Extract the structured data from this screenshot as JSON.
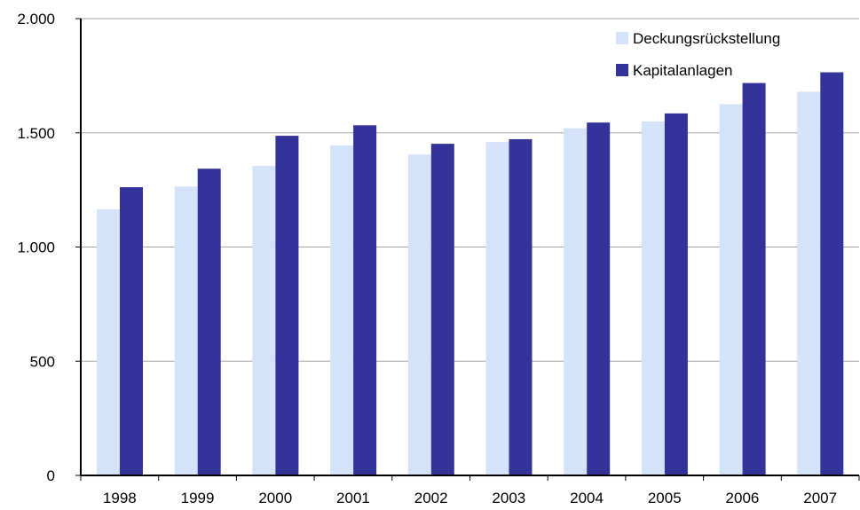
{
  "chart_data": {
    "type": "bar",
    "title": "",
    "xlabel": "",
    "ylabel": "",
    "categories": [
      "1998",
      "1999",
      "2000",
      "2001",
      "2002",
      "2003",
      "2004",
      "2005",
      "2006",
      "2007"
    ],
    "series": [
      {
        "name": "Deckungsrückstellung",
        "color": "#d5e3fa",
        "values": [
          1165,
          1265,
          1355,
          1445,
          1405,
          1460,
          1520,
          1550,
          1625,
          1680
        ]
      },
      {
        "name": "Kapitalanlagen",
        "color": "#333399",
        "values": [
          1262,
          1343,
          1487,
          1533,
          1452,
          1472,
          1545,
          1585,
          1718,
          1765
        ]
      }
    ],
    "ylim": [
      0,
      2000
    ],
    "yticks": [
      0,
      500,
      1000,
      1500,
      2000
    ],
    "ytick_labels": [
      "0",
      "500",
      "1.000",
      "1.500",
      "2.000"
    ],
    "grid": true,
    "legend_position": "top-right"
  }
}
